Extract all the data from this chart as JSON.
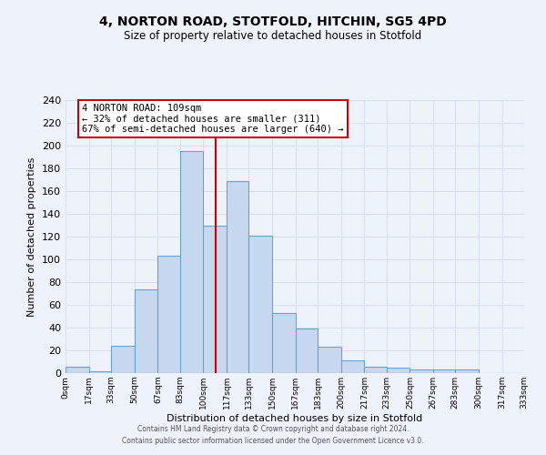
{
  "title": "4, NORTON ROAD, STOTFOLD, HITCHIN, SG5 4PD",
  "subtitle": "Size of property relative to detached houses in Stotfold",
  "xlabel": "Distribution of detached houses by size in Stotfold",
  "ylabel": "Number of detached properties",
  "bar_color": "#c5d8ef",
  "bar_edge_color": "#6aa3cc",
  "background_color": "#eef2fb",
  "grid_color": "#d8e0f0",
  "vline_x": 109,
  "vline_color": "#cc0000",
  "annotation_title": "4 NORTON ROAD: 109sqm",
  "annotation_line1": "← 32% of detached houses are smaller (311)",
  "annotation_line2": "67% of semi-detached houses are larger (640) →",
  "annotation_box_color": "#ffffff",
  "annotation_box_edge": "#cc0000",
  "footer1": "Contains HM Land Registry data © Crown copyright and database right 2024.",
  "footer2": "Contains public sector information licensed under the Open Government Licence v3.0.",
  "bin_edges": [
    0,
    17,
    33,
    50,
    67,
    83,
    100,
    117,
    133,
    150,
    167,
    183,
    200,
    217,
    233,
    250,
    267,
    283,
    300,
    317,
    333
  ],
  "bin_heights": [
    6,
    2,
    24,
    74,
    103,
    195,
    130,
    169,
    121,
    53,
    39,
    23,
    11,
    6,
    5,
    3,
    3,
    3,
    0,
    0
  ],
  "ylim": [
    0,
    240
  ],
  "yticks": [
    0,
    20,
    40,
    60,
    80,
    100,
    120,
    140,
    160,
    180,
    200,
    220,
    240
  ],
  "tick_labels": [
    "0sqm",
    "17sqm",
    "33sqm",
    "50sqm",
    "67sqm",
    "83sqm",
    "100sqm",
    "117sqm",
    "133sqm",
    "150sqm",
    "167sqm",
    "183sqm",
    "200sqm",
    "217sqm",
    "233sqm",
    "250sqm",
    "267sqm",
    "283sqm",
    "300sqm",
    "317sqm",
    "333sqm"
  ]
}
